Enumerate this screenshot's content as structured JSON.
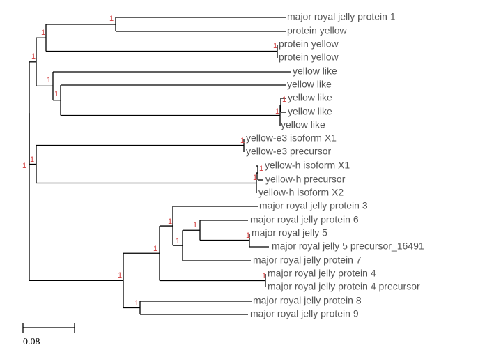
{
  "tree": {
    "leaves": [
      "major royal jelly protein 1",
      "protein yellow",
      "protein yellow",
      "protein yellow",
      "yellow like",
      "yellow like",
      "yellow like",
      "yellow like",
      "yellow like",
      "yellow-e3 isoform X1",
      "yellow-e3 precursor",
      "yellow-h isoform X1",
      "yellow-h precursor",
      "yellow-h isoform X2",
      "major royal jelly protein 3",
      "major royal jelly protein 6",
      "major royal jelly 5",
      "major royal jelly 5 precursor_16491",
      "major royal jelly protein 7",
      "major royal jelly protein 4",
      "major royal jelly protein 4 precursor",
      "major royal jelly protein 8",
      "major royal jelly protein 9"
    ],
    "support_value": "1",
    "colors": {
      "branch": "#000000",
      "label": "#555555",
      "support": "#d23c3c"
    }
  },
  "scale_bar": {
    "label": "0.08"
  }
}
